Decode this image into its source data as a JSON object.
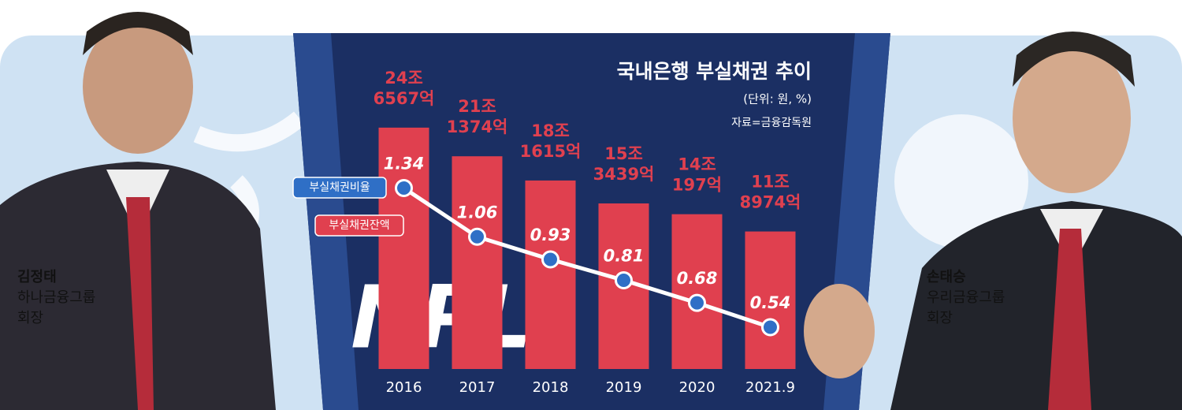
{
  "chart_data": {
    "type": "bar",
    "title": "국내은행 부실채권 추이",
    "subtitle": "(단위: 원, %)",
    "source": "자료=금융감독원",
    "watermark": "NPL",
    "categories": [
      "2016",
      "2017",
      "2018",
      "2019",
      "2020",
      "2021.9"
    ],
    "series": [
      {
        "name": "부실채권잔액",
        "type": "bar",
        "color": "#e0404f",
        "values": [
          246567,
          211374,
          181615,
          153439,
          140197,
          118974
        ],
        "value_labels": [
          [
            "24조",
            "6567억"
          ],
          [
            "21조",
            "1374억"
          ],
          [
            "18조",
            "1615억"
          ],
          [
            "15조",
            "3439억"
          ],
          [
            "14조",
            "197억"
          ],
          [
            "11조",
            "8974억"
          ]
        ]
      },
      {
        "name": "부실채권비율",
        "type": "line",
        "axis": "y2",
        "color": "#ffffff",
        "values": [
          1.34,
          1.06,
          0.93,
          0.81,
          0.68,
          0.54
        ]
      }
    ],
    "ylim": [
      -50000,
      260000
    ],
    "y2lim": [
      0.3,
      1.75
    ]
  },
  "people": [
    {
      "name": "김정태",
      "org": "하나금융그룹",
      "role": "회장"
    },
    {
      "name": "손태승",
      "org": "우리금융그룹",
      "role": "회장"
    }
  ]
}
